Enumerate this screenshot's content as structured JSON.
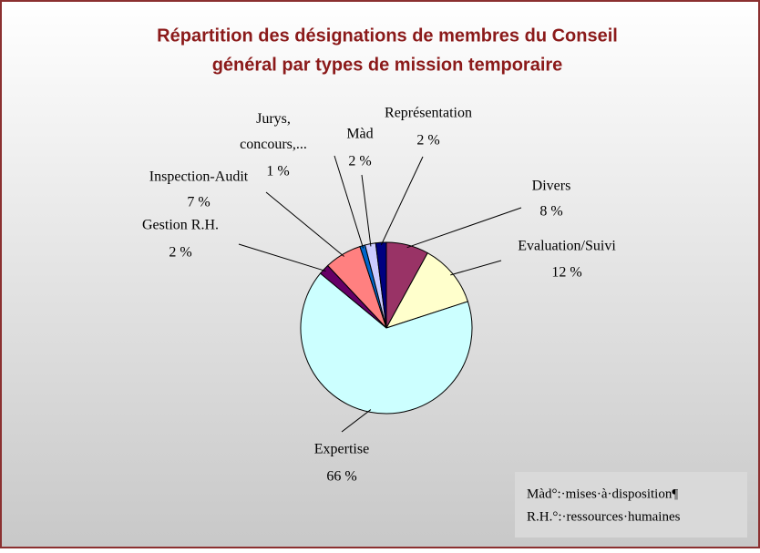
{
  "chart_data": {
    "type": "pie",
    "title": [
      "Répartition des désignations de membres du Conseil",
      "général  par types de mission temporaire"
    ],
    "categories": [
      "Divers",
      "Evaluation/Suivi",
      "Expertise",
      "Gestion  R.H.",
      "Inspection-Audit",
      "Jurys, concours,...",
      "Màd",
      "Représentation"
    ],
    "values": [
      8,
      12,
      66,
      2,
      7,
      1,
      2,
      2
    ],
    "value_labels": [
      "8 %",
      "12 %",
      "66 %",
      "2 %",
      "7 %",
      "1 %",
      "2 %",
      "2 %"
    ],
    "colors": [
      "#993366",
      "#ffffcc",
      "#ccffff",
      "#660066",
      "#ff8080",
      "#0066cc",
      "#ccccff",
      "#000080"
    ],
    "notes": [
      "Màd°:·mises·à·disposition¶",
      "R.H.°:·ressources·humaines"
    ]
  }
}
